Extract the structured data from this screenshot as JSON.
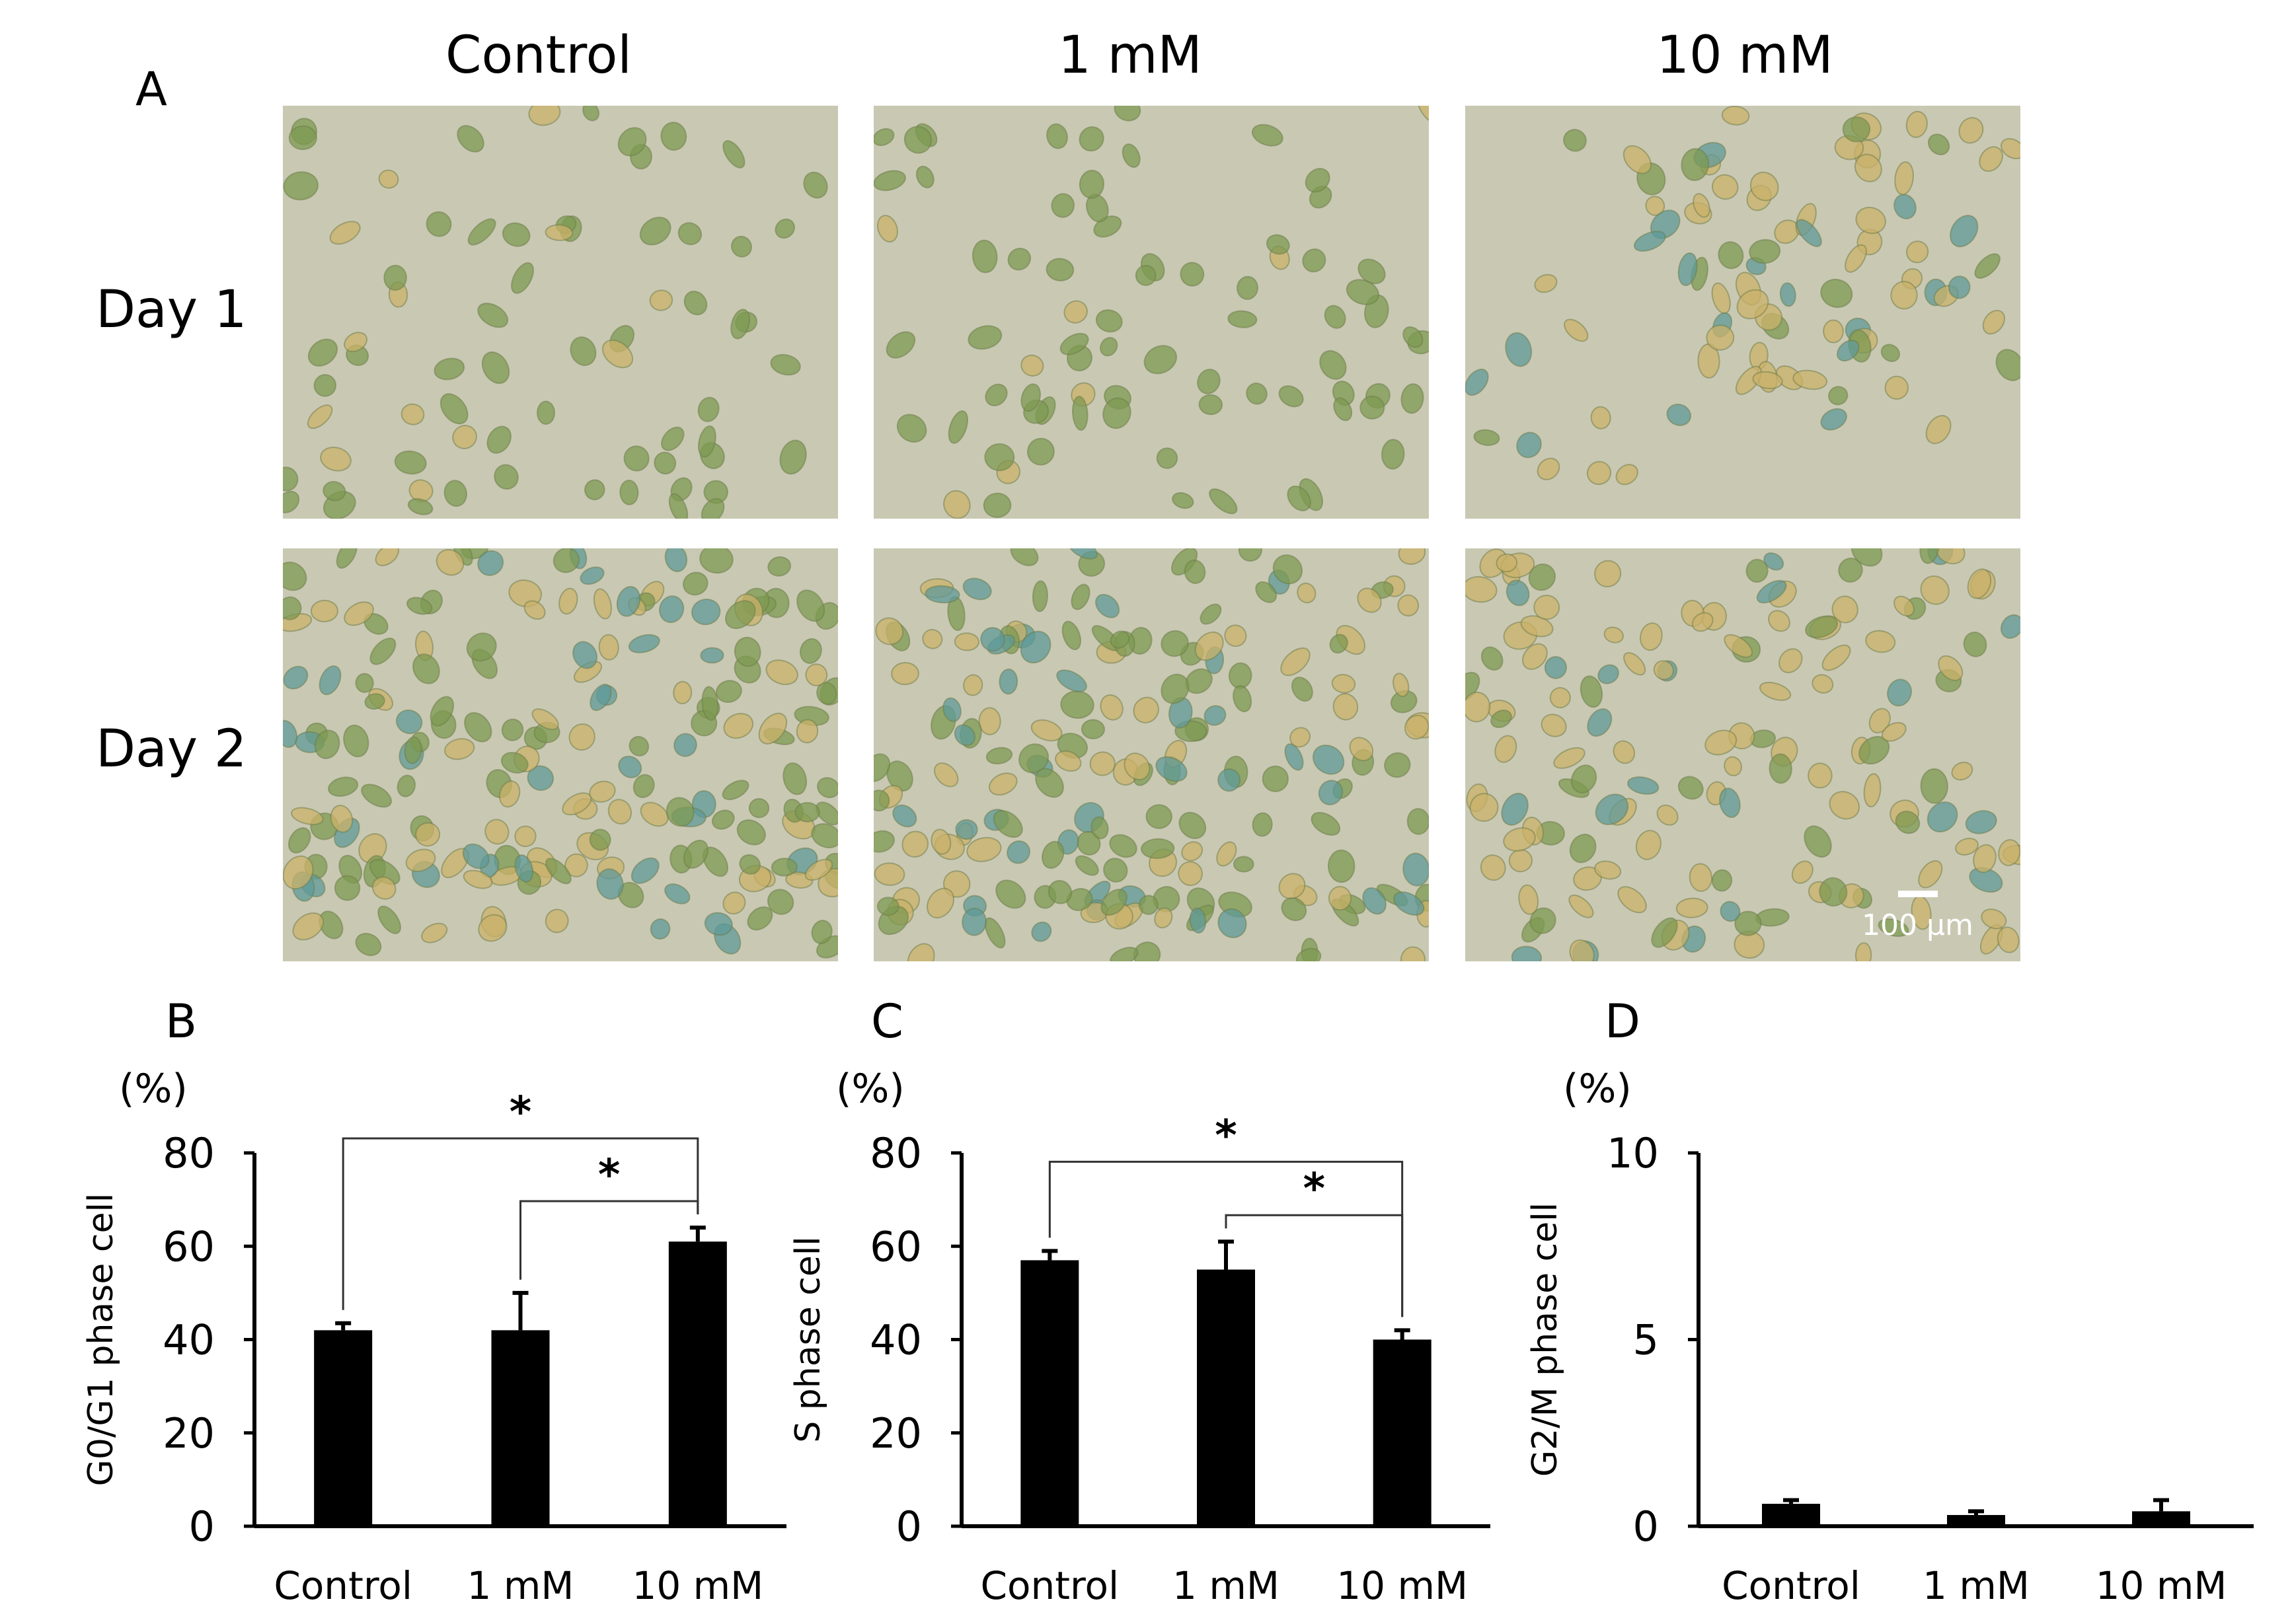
{
  "panel_a": {
    "letter": "A",
    "columns": [
      "Control",
      "1 mM",
      "10 mM"
    ],
    "rows": [
      "Day 1",
      "Day 2"
    ],
    "scale_bar_label": "100 µm",
    "colors": {
      "background": "#c9c9b3",
      "cell_green": "#7d9a52",
      "cell_yellow": "#c9b26a",
      "cell_blue": "#5f9a98"
    }
  },
  "chart_data": [
    {
      "type": "bar",
      "panel_letter": "B",
      "categories": [
        "Control",
        "1 mM",
        "10 mM"
      ],
      "values": [
        42,
        42,
        61
      ],
      "errors": [
        1.5,
        8,
        3
      ],
      "ylabel": "G0/G1 phase cell",
      "yunit": "(%)",
      "ylim": [
        0,
        80
      ],
      "yticks": [
        0,
        20,
        40,
        60,
        80
      ],
      "significance": [
        {
          "from": 0,
          "to": 2,
          "label": "*"
        },
        {
          "from": 1,
          "to": 2,
          "label": "*"
        }
      ],
      "bar_color": "#000000",
      "grid": false
    },
    {
      "type": "bar",
      "panel_letter": "C",
      "categories": [
        "Control",
        "1 mM",
        "10 mM"
      ],
      "values": [
        57,
        55,
        40
      ],
      "errors": [
        2,
        6,
        2
      ],
      "ylabel": "S phase cell",
      "yunit": "(%)",
      "ylim": [
        0,
        80
      ],
      "yticks": [
        0,
        20,
        40,
        60,
        80
      ],
      "significance": [
        {
          "from": 0,
          "to": 2,
          "label": "*"
        },
        {
          "from": 1,
          "to": 2,
          "label": "*"
        }
      ],
      "bar_color": "#000000",
      "grid": false
    },
    {
      "type": "bar",
      "panel_letter": "D",
      "categories": [
        "Control",
        "1 mM",
        "10 mM"
      ],
      "values": [
        0.6,
        0.3,
        0.4
      ],
      "errors": [
        0.1,
        0.1,
        0.3
      ],
      "ylabel": "G2/M phase cell",
      "yunit": "(%)",
      "ylim": [
        0,
        10
      ],
      "yticks": [
        0,
        5,
        10
      ],
      "significance": [],
      "bar_color": "#000000",
      "grid": false
    }
  ]
}
